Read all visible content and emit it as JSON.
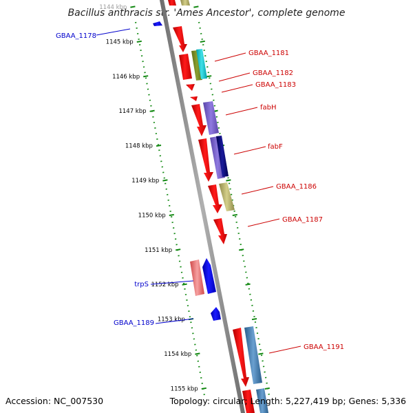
{
  "title": "Bacillus anthracis str. 'Ames Ancestor', complete genome",
  "footer": {
    "accession": "Accession: NC_007530",
    "summary": "Topology: circular; Length: 5,227,419 bp; Genes: 5,336"
  },
  "ticks": [
    "1144 kbp",
    "1145 kbp",
    "1146 kbp",
    "1147 kbp",
    "1148 kbp",
    "1149 kbp",
    "1150 kbp",
    "1151 kbp",
    "1152 kbp",
    "1153 kbp",
    "1154 kbp",
    "1155 kbp"
  ],
  "gene_labels": {
    "gbaa_1178": "GBAA_1178",
    "gbaa_1181": "GBAA_1181",
    "gbaa_1182": "GBAA_1182",
    "gbaa_1183": "GBAA_1183",
    "fabh": "fabH",
    "fabf": "fabF",
    "gbaa_1186": "GBAA_1186",
    "gbaa_1187": "GBAA_1187",
    "trps": "trpS",
    "gbaa_1189": "GBAA_1189",
    "gbaa_1191": "GBAA_1191"
  },
  "colors": {
    "forward_label": "#cc0000",
    "reverse_label": "#0000cc",
    "cds": "#ff0000",
    "reverse_cds": "#0000ff",
    "backbone": "#8a8a8a",
    "tick_dots": "#118811"
  }
}
